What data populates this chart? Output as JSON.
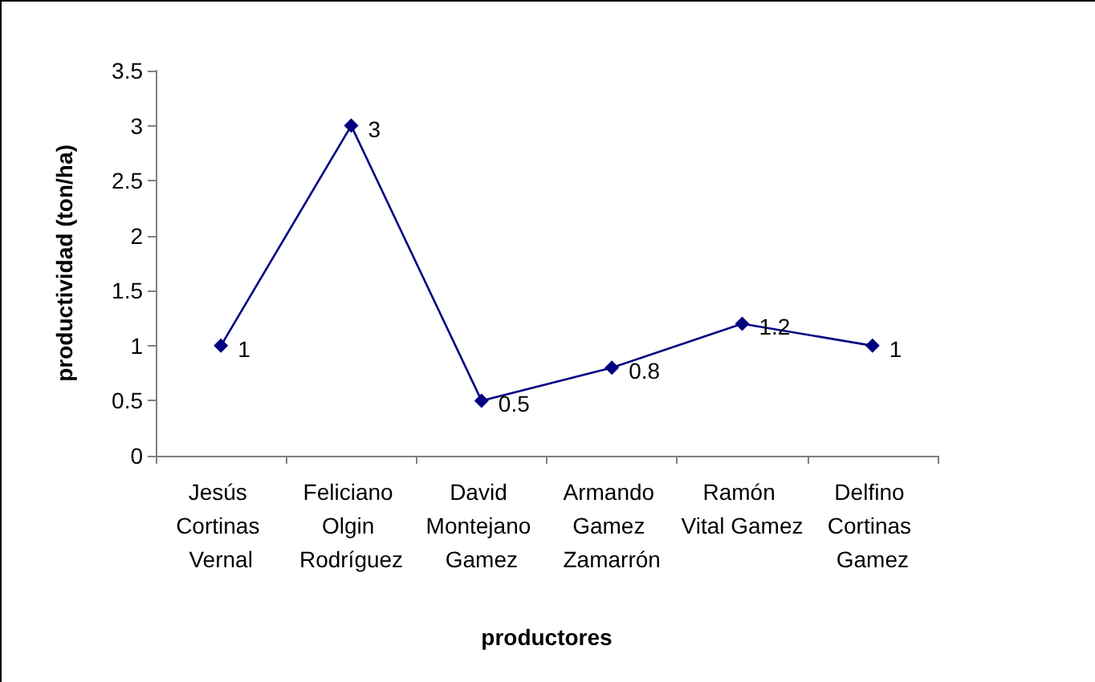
{
  "chart_data": {
    "type": "line",
    "xlabel": "productores",
    "ylabel": "productividad (ton/ha)",
    "categories": [
      "Jesús Cortinas Vernal",
      "Feliciano Olgin Rodríguez",
      "David Montejano Gamez",
      "Armando Gamez Zamarrón",
      "Ramón Vital Gamez",
      "Delfino Cortinas Gamez"
    ],
    "series": [
      {
        "color": "#000080",
        "values": [
          1,
          3,
          0.5,
          0.8,
          1.2,
          1
        ]
      }
    ],
    "ylim": [
      0,
      3.5
    ],
    "yticks": [
      0,
      0.5,
      1,
      1.5,
      2,
      2.5,
      3,
      3.5
    ],
    "marker": "diamond",
    "line_style": "solid",
    "data_labels": true
  }
}
